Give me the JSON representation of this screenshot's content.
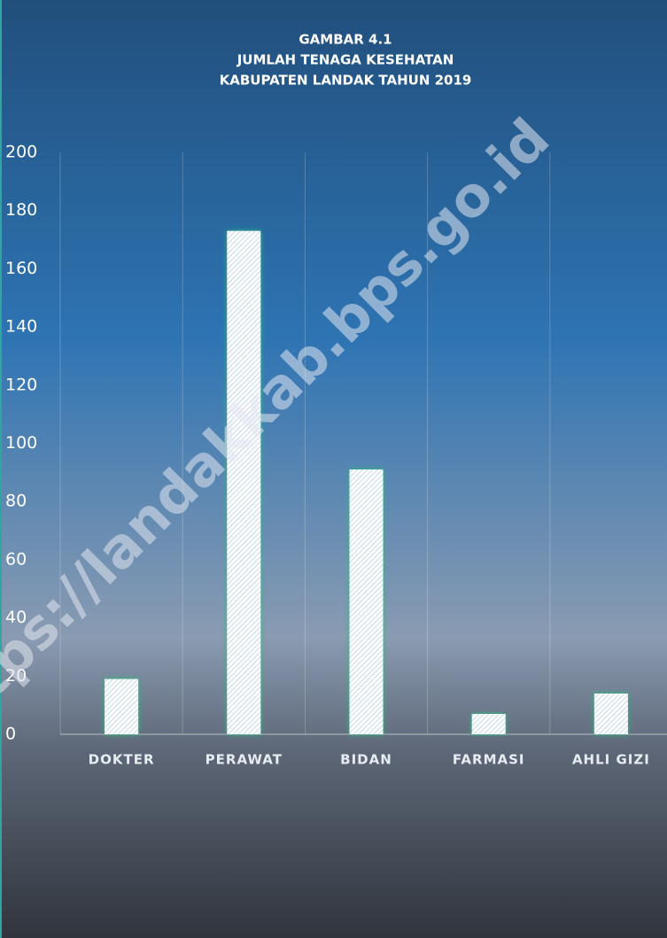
{
  "chart_data": {
    "type": "bar",
    "title": [
      "GAMBAR 4.1",
      "JUMLAH TENAGA KESEHATAN",
      "KABUPATEN LANDAK TAHUN 2019"
    ],
    "categories": [
      "DOKTER",
      "PERAWAT",
      "BIDAN",
      "FARMASI",
      "AHLI GIZI"
    ],
    "values": [
      19,
      173,
      91,
      7,
      14
    ],
    "color": "#eef4fb",
    "ylim": [
      0,
      200
    ],
    "yticks": [
      0,
      20,
      40,
      60,
      80,
      100,
      120,
      140,
      160,
      180,
      200
    ],
    "grid": false,
    "watermark": "https://landakkab.bps.go.id"
  }
}
